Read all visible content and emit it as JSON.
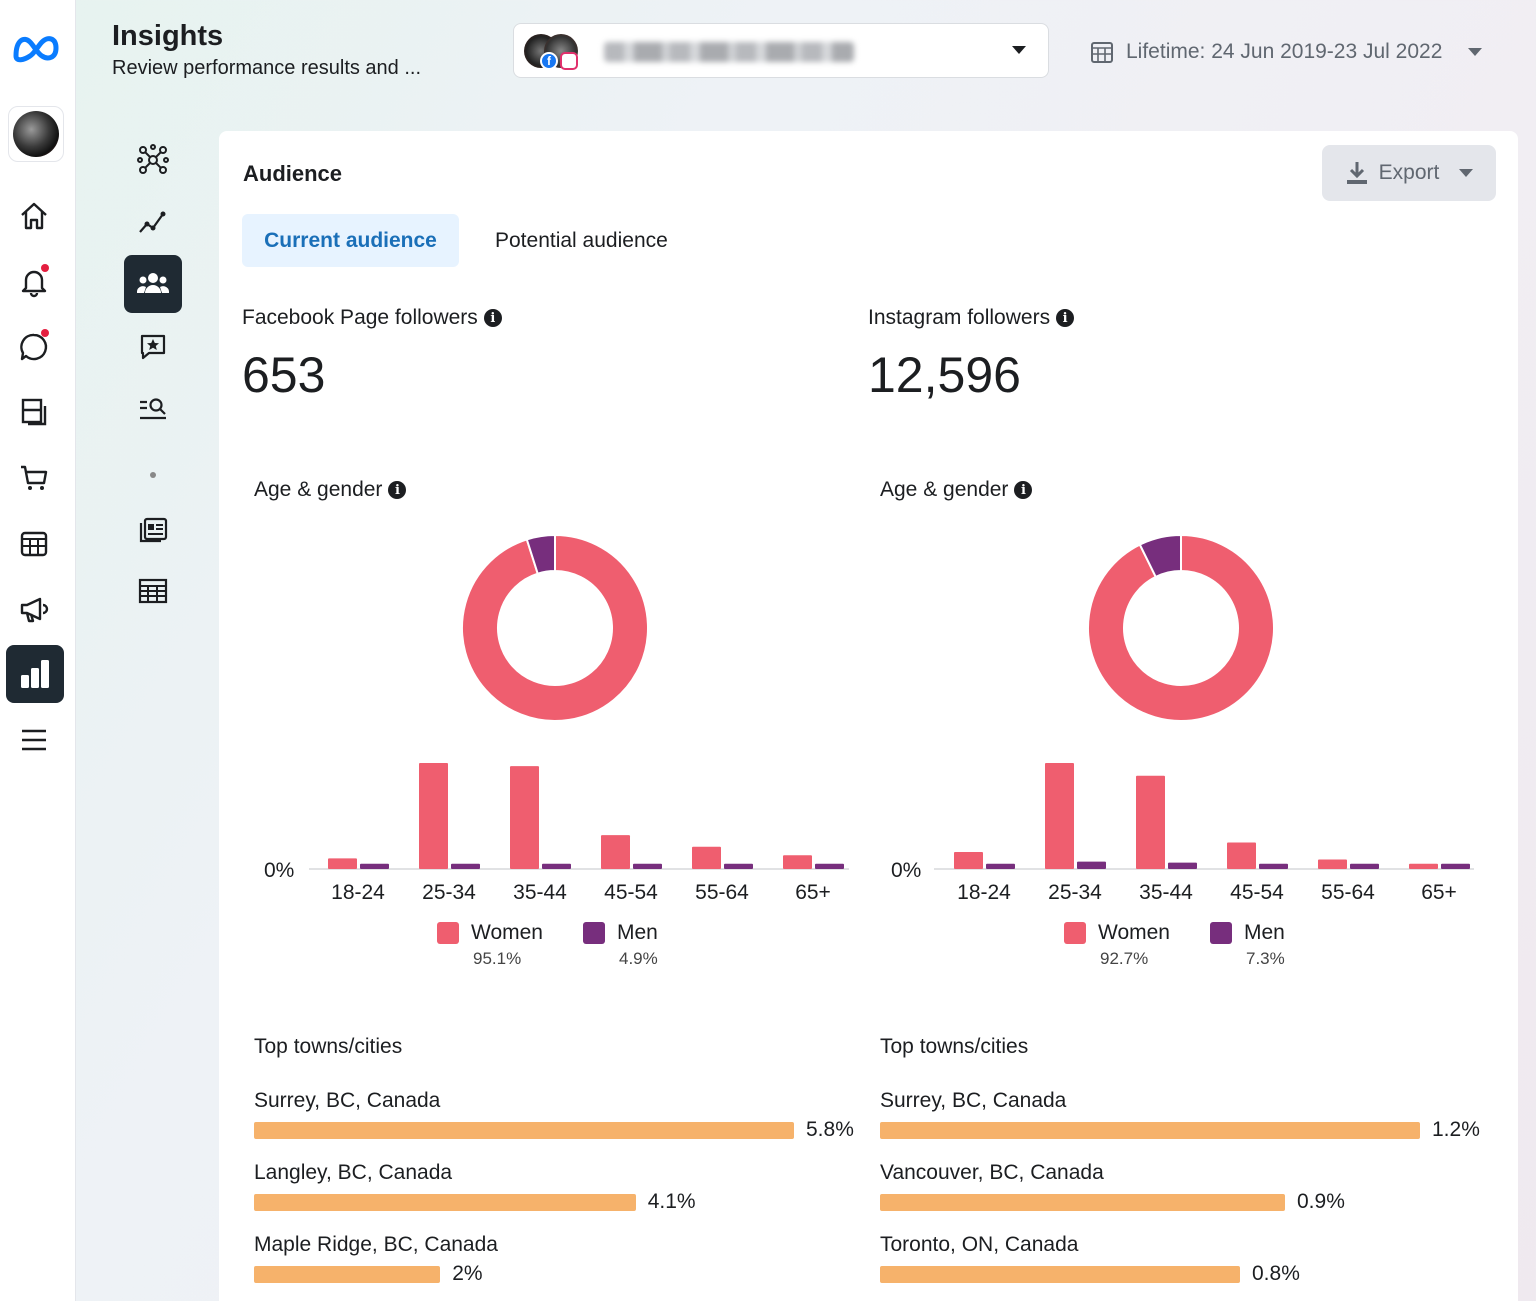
{
  "header": {
    "title": "Insights",
    "subtitle": "Review performance results and ...",
    "date_range": "Lifetime: 24 Jun 2019-23 Jul 2022"
  },
  "card": {
    "title": "Audience",
    "export_label": "Export",
    "tabs": [
      {
        "label": "Current audience",
        "active": true
      },
      {
        "label": "Potential audience",
        "active": false
      }
    ]
  },
  "colors": {
    "women": "#ef5e6f",
    "men": "#772e7d",
    "city_bar": "#f6b26b",
    "accent": "#1877f2"
  },
  "facebook": {
    "followers_label": "Facebook Page followers",
    "followers_value": "653",
    "age_gender_label": "Age & gender",
    "zero_label": "0%",
    "legend": {
      "women_label": "Women",
      "women_pct": "95.1%",
      "men_label": "Men",
      "men_pct": "4.9%"
    },
    "cities_label": "Top towns/cities",
    "cities": [
      {
        "name": "Surrey, BC, Canada",
        "value": 5.8,
        "label": "5.8%"
      },
      {
        "name": "Langley, BC, Canada",
        "value": 4.1,
        "label": "4.1%"
      },
      {
        "name": "Maple Ridge, BC, Canada",
        "value": 2.0,
        "label": "2%"
      }
    ]
  },
  "instagram": {
    "followers_label": "Instagram followers",
    "followers_value": "12,596",
    "age_gender_label": "Age & gender",
    "zero_label": "0%",
    "legend": {
      "women_label": "Women",
      "women_pct": "92.7%",
      "men_label": "Men",
      "men_pct": "7.3%"
    },
    "cities_label": "Top towns/cities",
    "cities": [
      {
        "name": "Surrey, BC, Canada",
        "value": 1.2,
        "label": "1.2%"
      },
      {
        "name": "Vancouver, BC, Canada",
        "value": 0.9,
        "label": "0.9%"
      },
      {
        "name": "Toronto, ON, Canada",
        "value": 0.8,
        "label": "0.8%"
      }
    ]
  },
  "chart_data": [
    {
      "type": "pie",
      "title": "Facebook Page followers – Age & gender",
      "categories": [
        "Women",
        "Men"
      ],
      "values": [
        95.1,
        4.9
      ]
    },
    {
      "type": "bar",
      "title": "Facebook Page followers – Age & gender",
      "categories": [
        "18-24",
        "25-34",
        "35-44",
        "45-54",
        "55-64",
        "65+"
      ],
      "series": [
        {
          "name": "Women",
          "values": [
            1.0,
            10.0,
            9.7,
            3.2,
            2.1,
            1.3
          ]
        },
        {
          "name": "Men",
          "values": [
            0.5,
            0.5,
            0.5,
            0.5,
            0.5,
            0.5
          ]
        }
      ],
      "ylabel": "",
      "xlabel": "",
      "ylim": [
        0,
        10
      ]
    },
    {
      "type": "pie",
      "title": "Instagram followers – Age & gender",
      "categories": [
        "Women",
        "Men"
      ],
      "values": [
        92.7,
        7.3
      ]
    },
    {
      "type": "bar",
      "title": "Instagram followers – Age & gender",
      "categories": [
        "18-24",
        "25-34",
        "35-44",
        "45-54",
        "55-64",
        "65+"
      ],
      "series": [
        {
          "name": "Women",
          "values": [
            1.6,
            10.0,
            8.8,
            2.5,
            0.9,
            0.5
          ]
        },
        {
          "name": "Men",
          "values": [
            0.5,
            0.7,
            0.6,
            0.5,
            0.5,
            0.5
          ]
        }
      ],
      "ylabel": "",
      "xlabel": "",
      "ylim": [
        0,
        10
      ]
    }
  ]
}
